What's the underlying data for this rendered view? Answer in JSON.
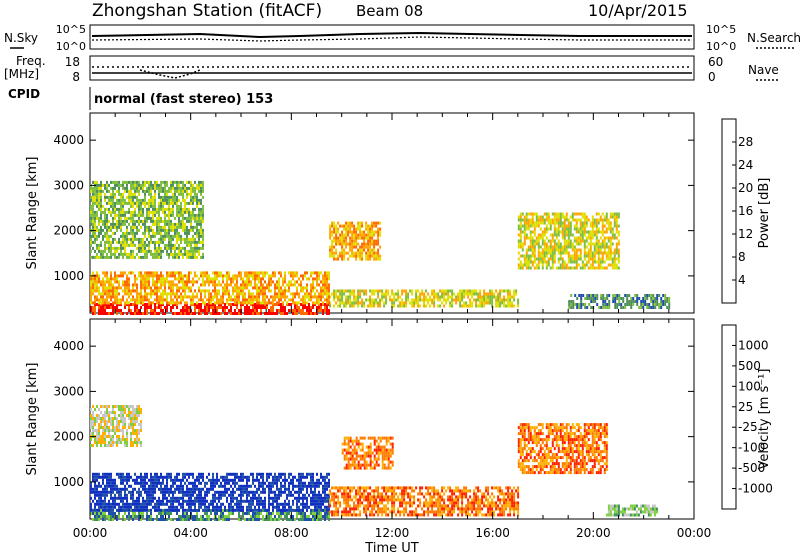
{
  "header": {
    "station": "Zhongshan Station (fitACF)",
    "beam": "Beam 08",
    "date": "10/Apr/2015"
  },
  "panels": {
    "nsky": {
      "label": "N.Sky",
      "ticks_left": [
        "10^5",
        "10^0"
      ],
      "ticks_right": [
        "10^5",
        "10^0"
      ],
      "right_label": "N.Search"
    },
    "freq": {
      "label_top": "Freq.",
      "label_unit": "[MHz]",
      "ticks_left": [
        "18",
        "8"
      ],
      "ticks_right": [
        "60",
        "0"
      ],
      "right_label": "Nave"
    },
    "cpid": {
      "label": "CPID",
      "value": "normal (fast stereo) 153"
    }
  },
  "chart_data": [
    {
      "type": "heatmap",
      "title": "",
      "xlabel": "",
      "ylabel": "Slant Range [km]",
      "x_tick_labels": [
        "00:00",
        "04:00",
        "08:00",
        "12:00",
        "16:00",
        "20:00",
        "00:00"
      ],
      "y_tick_labels": [
        "1000",
        "2000",
        "3000",
        "4000"
      ],
      "ylim": [
        180,
        4600
      ],
      "colorbar": {
        "label": "Power [dB]",
        "ticks": [
          "4",
          "8",
          "12",
          "16",
          "20",
          "24",
          "28"
        ],
        "colors": [
          "#0000ff",
          "#1f4fa8",
          "#4f8f5c",
          "#7fbf3f",
          "#dfdf00",
          "#ffa500",
          "#ff6a00",
          "#ff0000"
        ]
      },
      "bands": [
        {
          "hours": [
            0,
            9.5
          ],
          "range_km": [
            200,
            400
          ],
          "level": 7
        },
        {
          "hours": [
            9.5,
            17
          ],
          "range_km": [
            350,
            700
          ],
          "level": 4
        },
        {
          "hours": [
            0,
            9.5
          ],
          "range_km": [
            400,
            1100
          ],
          "level": 5
        },
        {
          "hours": [
            0,
            4.5
          ],
          "range_km": [
            1400,
            3100
          ],
          "level": 3
        },
        {
          "hours": [
            17,
            21
          ],
          "range_km": [
            1200,
            2400
          ],
          "level": 4
        },
        {
          "hours": [
            19,
            23
          ],
          "range_km": [
            300,
            600
          ],
          "level": 2
        },
        {
          "hours": [
            9.5,
            11.5
          ],
          "range_km": [
            1400,
            2200
          ],
          "level": 5
        }
      ]
    },
    {
      "type": "heatmap",
      "title": "",
      "xlabel": "Time UT",
      "ylabel": "Slant Range [km]",
      "x_tick_labels": [
        "00:00",
        "04:00",
        "08:00",
        "12:00",
        "16:00",
        "20:00",
        "00:00"
      ],
      "y_tick_labels": [
        "1000",
        "2000",
        "3000",
        "4000"
      ],
      "ylim": [
        180,
        4600
      ],
      "colorbar": {
        "label": "Velocity [m s⁻¹]",
        "ticks": [
          "1000",
          "500",
          "100",
          "25",
          "-25",
          "-100",
          "-500",
          "-1000"
        ],
        "colors": [
          "#1030c0",
          "#1f4fa8",
          "#3f8f5f",
          "#7fcf3f",
          "#c8c8c8",
          "#ffb000",
          "#ff7a00",
          "#ff2000",
          "#ff0000"
        ]
      },
      "bands": [
        {
          "hours": [
            0,
            9.5
          ],
          "range_km": [
            200,
            400
          ],
          "level": 2
        },
        {
          "hours": [
            0,
            9.5
          ],
          "range_km": [
            400,
            1200
          ],
          "level": 0
        },
        {
          "hours": [
            0,
            2
          ],
          "range_km": [
            1800,
            2700
          ],
          "level": 4
        },
        {
          "hours": [
            9.5,
            17
          ],
          "range_km": [
            300,
            900
          ],
          "level": 6
        },
        {
          "hours": [
            17,
            20.5
          ],
          "range_km": [
            1200,
            2300
          ],
          "level": 6
        },
        {
          "hours": [
            20.5,
            22.5
          ],
          "range_km": [
            300,
            500
          ],
          "level": 3
        },
        {
          "hours": [
            10,
            12
          ],
          "range_km": [
            1300,
            2000
          ],
          "level": 6
        }
      ]
    }
  ]
}
